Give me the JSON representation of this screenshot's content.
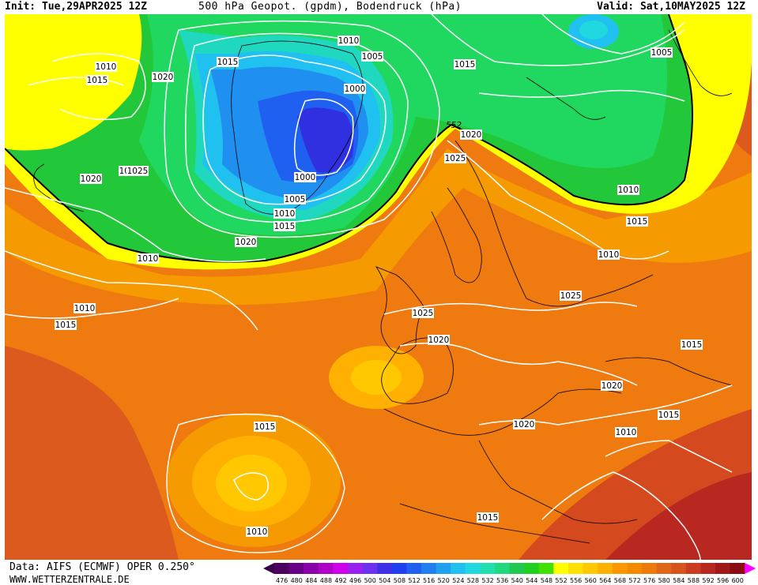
{
  "header": {
    "init": "Init: Tue,29APR2025 12Z",
    "title": "500 hPa Geopot. (gpdm), Bodendruck (hPa)",
    "valid": "Valid: Sat,10MAY2025 12Z"
  },
  "footer": {
    "source": "Data: AIFS (ECMWF) OPER 0.250°",
    "website": "WWW.WETTERZENTRALE.DE"
  },
  "legend": {
    "values": [
      "476",
      "480",
      "484",
      "488",
      "492",
      "496",
      "500",
      "504",
      "508",
      "512",
      "516",
      "520",
      "524",
      "528",
      "532",
      "536",
      "540",
      "544",
      "548",
      "552",
      "556",
      "560",
      "564",
      "568",
      "572",
      "576",
      "580",
      "584",
      "588",
      "592",
      "596",
      "600"
    ],
    "colors": [
      "#4b0060",
      "#6a0088",
      "#8a00a8",
      "#b000c8",
      "#d000e8",
      "#9a20f0",
      "#7030f0",
      "#4030e8",
      "#2040f0",
      "#2060f0",
      "#2080f0",
      "#20a0f0",
      "#20c0f0",
      "#20d8e0",
      "#20e0b0",
      "#20d880",
      "#20c850",
      "#20d020",
      "#40e000",
      "#ffff00",
      "#ffe000",
      "#ffc800",
      "#ffb000",
      "#ff9800",
      "#f58a00",
      "#ed7a0a",
      "#e0661a",
      "#d8541e",
      "#cc3a20",
      "#b82820",
      "#a01818",
      "#8a0c10"
    ],
    "end_left_color": "#3a0050",
    "end_right_color": "#ff00ff"
  },
  "map": {
    "contour_552_label": "552",
    "pressure_labels": [
      "1010",
      "1015",
      "1020",
      "1010",
      "1005",
      "1015",
      "1015",
      "1020",
      "1000",
      "1025",
      "1000",
      "1005",
      "1010",
      "1015",
      "1020",
      "552",
      "1020",
      "1025",
      "1010",
      "1005",
      "1020",
      "1015",
      "1010",
      "1010",
      "1015",
      "1025",
      "1025",
      "1020",
      "1015",
      "1020",
      "1015",
      "1020",
      "1010",
      "1015",
      "1010",
      "1010",
      "1015"
    ]
  }
}
